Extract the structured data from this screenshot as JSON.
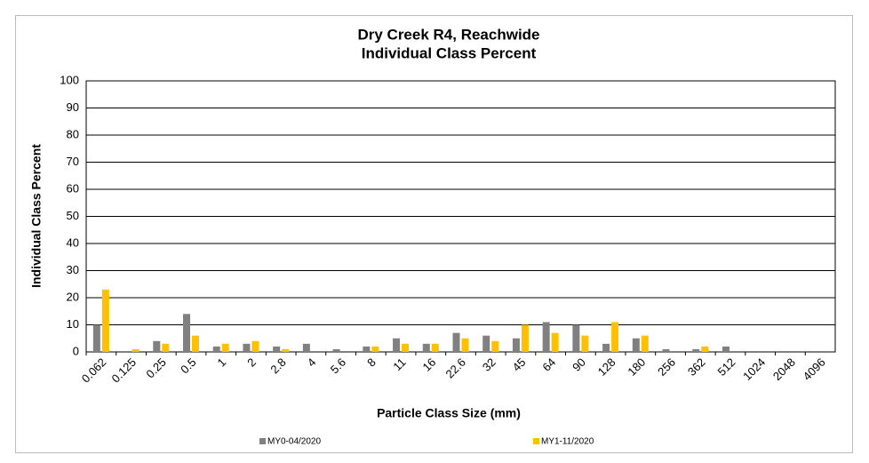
{
  "chart_data": {
    "type": "bar",
    "title": "Dry Creek R4, Reachwide",
    "subtitle": "Individual Class Percent",
    "x_label": "Particle Class Size (mm)",
    "y_label": "Individual Class Percent",
    "categories": [
      "0.062",
      "0.125",
      "0.25",
      "0.5",
      "1",
      "2",
      "2.8",
      "4",
      "5.6",
      "8",
      "11",
      "16",
      "22.6",
      "32",
      "45",
      "64",
      "90",
      "128",
      "180",
      "256",
      "362",
      "512",
      "1024",
      "2048",
      "4096"
    ],
    "series": [
      {
        "name": "MY0-04/2020",
        "color": "#808080",
        "values": [
          10,
          0,
          4,
          14,
          2,
          3,
          2,
          3,
          1,
          2,
          5,
          3,
          7,
          6,
          5,
          11,
          10,
          3,
          5,
          1,
          1,
          2,
          0,
          0,
          0
        ]
      },
      {
        "name": "MY1-11/2020",
        "color": "#ffc000",
        "values": [
          23,
          1,
          3,
          6,
          3,
          4,
          1,
          0,
          0,
          2,
          3,
          3,
          5,
          4,
          10,
          7,
          6,
          11,
          6,
          0,
          2,
          0,
          0,
          0,
          0
        ]
      }
    ],
    "ylim": [
      0,
      100
    ],
    "yticks": [
      0,
      10,
      20,
      30,
      40,
      50,
      60,
      70,
      80,
      90,
      100
    ],
    "grid": true,
    "legend": "bottom"
  }
}
